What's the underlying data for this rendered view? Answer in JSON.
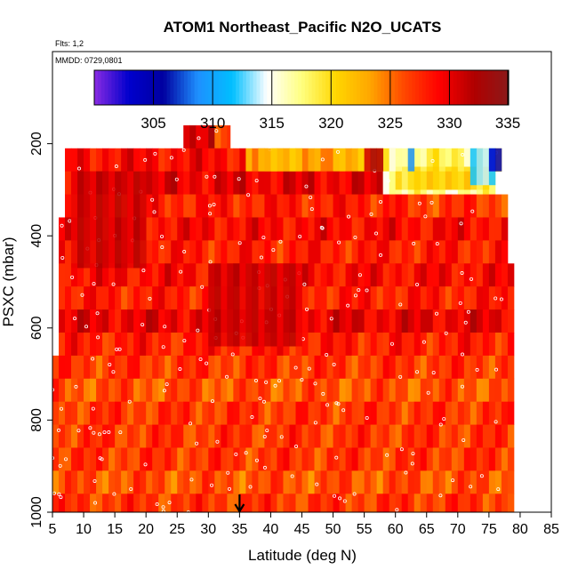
{
  "chart_data": {
    "type": "heatmap",
    "title": "ATOM1 Northeast_Pacific N2O_UCATS",
    "annotations": [
      "Flts: 1,2",
      "MMDD: 0729,0801"
    ],
    "xlabel": "Latitude (deg N)",
    "ylabel": "PSXC (mbar)",
    "xlim": [
      5,
      85
    ],
    "ylim": [
      1000,
      0
    ],
    "x_ticks": [
      5,
      10,
      15,
      20,
      25,
      30,
      35,
      40,
      45,
      50,
      55,
      60,
      65,
      70,
      75,
      80,
      85
    ],
    "y_ticks": [
      200,
      400,
      600,
      800,
      1000
    ],
    "colorbar": {
      "range": [
        300,
        335
      ],
      "ticks": [
        305,
        310,
        315,
        320,
        325,
        330,
        335
      ],
      "colors": [
        "#8a2be2",
        "#0000cd",
        "#0000a0",
        "#1e90ff",
        "#00bfff",
        "#ffffff",
        "#ffff80",
        "#ffd700",
        "#ffa500",
        "#ff4500",
        "#ff0000",
        "#b00000",
        "#8b1a1a"
      ]
    },
    "marker_latitude": 35,
    "layers": [
      {
        "p_top": 160,
        "p_bot": 210,
        "lat_start": 26,
        "lat_end": 31,
        "value": 331
      },
      {
        "p_top": 160,
        "p_bot": 210,
        "lat_start": 31,
        "lat_end": 33.5,
        "value": 326
      },
      {
        "p_top": 210,
        "p_bot": 260,
        "lat_start": 7,
        "lat_end": 36,
        "value": 329
      },
      {
        "p_top": 210,
        "p_bot": 260,
        "lat_start": 36,
        "lat_end": 58,
        "value": 323
      },
      {
        "p_top": 210,
        "p_bot": 260,
        "lat_start": 58,
        "lat_end": 77,
        "value": 318
      },
      {
        "p_top": 260,
        "p_bot": 310,
        "lat_start": 7,
        "lat_end": 58,
        "value": 330
      },
      {
        "p_top": 260,
        "p_bot": 310,
        "lat_start": 58,
        "lat_end": 76,
        "value": 317
      },
      {
        "p_top": 310,
        "p_bot": 360,
        "lat_start": 7,
        "lat_end": 60,
        "value": 328
      },
      {
        "p_top": 310,
        "p_bot": 360,
        "lat_start": 60,
        "lat_end": 78,
        "value": 327
      },
      {
        "p_top": 360,
        "p_bot": 410,
        "lat_start": 6,
        "lat_end": 78,
        "value": 329
      },
      {
        "p_top": 410,
        "p_bot": 460,
        "lat_start": 6,
        "lat_end": 78,
        "value": 328
      },
      {
        "p_top": 460,
        "p_bot": 510,
        "lat_start": 6,
        "lat_end": 79,
        "value": 329
      },
      {
        "p_top": 510,
        "p_bot": 560,
        "lat_start": 6,
        "lat_end": 79,
        "value": 328
      },
      {
        "p_top": 560,
        "p_bot": 610,
        "lat_start": 6,
        "lat_end": 79,
        "value": 330
      },
      {
        "p_top": 610,
        "p_bot": 660,
        "lat_start": 6,
        "lat_end": 79,
        "value": 328
      },
      {
        "p_top": 660,
        "p_bot": 710,
        "lat_start": 5,
        "lat_end": 79,
        "value": 327
      },
      {
        "p_top": 710,
        "p_bot": 760,
        "lat_start": 5,
        "lat_end": 79,
        "value": 326
      },
      {
        "p_top": 760,
        "p_bot": 810,
        "lat_start": 5,
        "lat_end": 79,
        "value": 327
      },
      {
        "p_top": 810,
        "p_bot": 860,
        "lat_start": 5,
        "lat_end": 79,
        "value": 327
      },
      {
        "p_top": 860,
        "p_bot": 910,
        "lat_start": 5,
        "lat_end": 79,
        "value": 327
      },
      {
        "p_top": 910,
        "p_bot": 960,
        "lat_start": 5,
        "lat_end": 79,
        "value": 326
      },
      {
        "p_top": 960,
        "p_bot": 1000,
        "lat_start": 5,
        "lat_end": 79,
        "value": 327
      }
    ],
    "hotspots": [
      {
        "lat_start": 30,
        "lat_end": 45,
        "p_top": 460,
        "p_bot": 640,
        "value": 331
      },
      {
        "lat_start": 8,
        "lat_end": 20,
        "p_top": 260,
        "p_bot": 470,
        "value": 331
      },
      {
        "lat_start": 60,
        "lat_end": 75,
        "p_top": 250,
        "p_bot": 300,
        "value": 320
      },
      {
        "lat_start": 63,
        "lat_end": 72,
        "p_top": 260,
        "p_bot": 300,
        "value": 321
      },
      {
        "lat_start": 72,
        "lat_end": 76,
        "p_top": 210,
        "p_bot": 290,
        "value": 313
      },
      {
        "lat_start": 75,
        "lat_end": 77,
        "p_top": 210,
        "p_bot": 260,
        "value": 304
      },
      {
        "lat_start": 62,
        "lat_end": 63,
        "p_top": 210,
        "p_bot": 260,
        "value": 310
      },
      {
        "lat_start": 59,
        "lat_end": 61,
        "p_top": 210,
        "p_bot": 260,
        "value": 316
      },
      {
        "lat_start": 38,
        "lat_end": 45,
        "p_top": 210,
        "p_bot": 260,
        "value": 322
      },
      {
        "lat_start": 55,
        "lat_end": 58,
        "p_top": 210,
        "p_bot": 260,
        "value": 332
      }
    ]
  }
}
